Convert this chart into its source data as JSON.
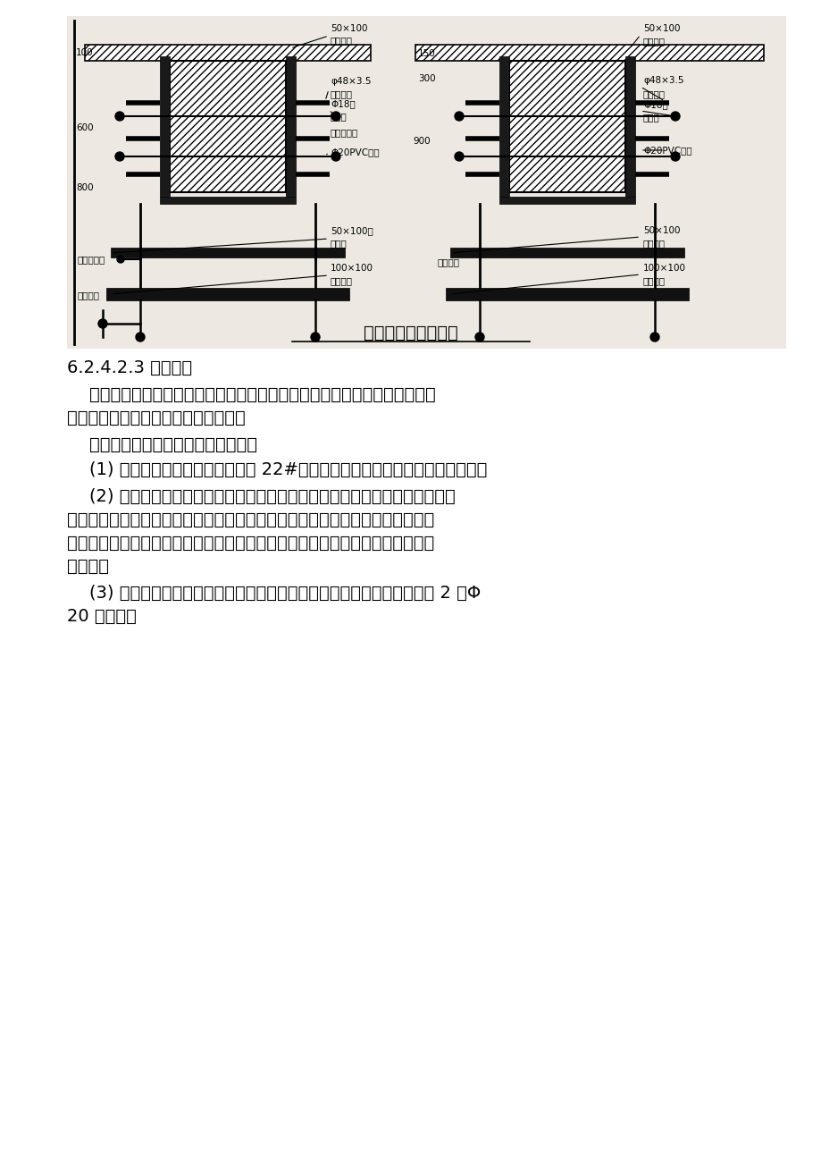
{
  "bg_color": "#ffffff",
  "diagram_caption": "主、次梁模板设计图",
  "section_title": "6.2.4.2.3 楼梯模板",
  "para0_line1": "    为避免常规现浇楼梯支模工艺中出现的楼梯面倾斜、混凝土面不平等情况，",
  "para0_line2": "楼梯模板采用全封闭式楼梯支模工艺。",
  "para1": "    全封闭式楼梯模板工艺的施工要点：",
  "para2": "    (1) 楼梯栏杆预埋件的埋设预先用 22#铁丝及铁钉将预埋件固定在踏步模板上。",
  "para3_line1": "    (2) 封闭模板混凝土浇注存在一定的难度，利用混凝土的流动性，将规范从梯",
  "para3_line2": "梁处下料，用振动棒将混凝土振入梯模内。混凝土的振捣是将振动棒从梯梁处伸",
  "para3_line3": "入梯模底部进行振捣，同时用另一台振动棒在梯模表面进行振捣，以确保混凝土",
  "para3_line4": "的密实。",
  "para4_line1": "    (3) 楼梯表面由于四边封死，存在气坑，故在踏面模板每隔三步用电钻钻 2 个Φ",
  "para4_line2": "20 排气孔。",
  "ann_fs": 7.5,
  "body_fs": 14,
  "caption_fs": 14
}
